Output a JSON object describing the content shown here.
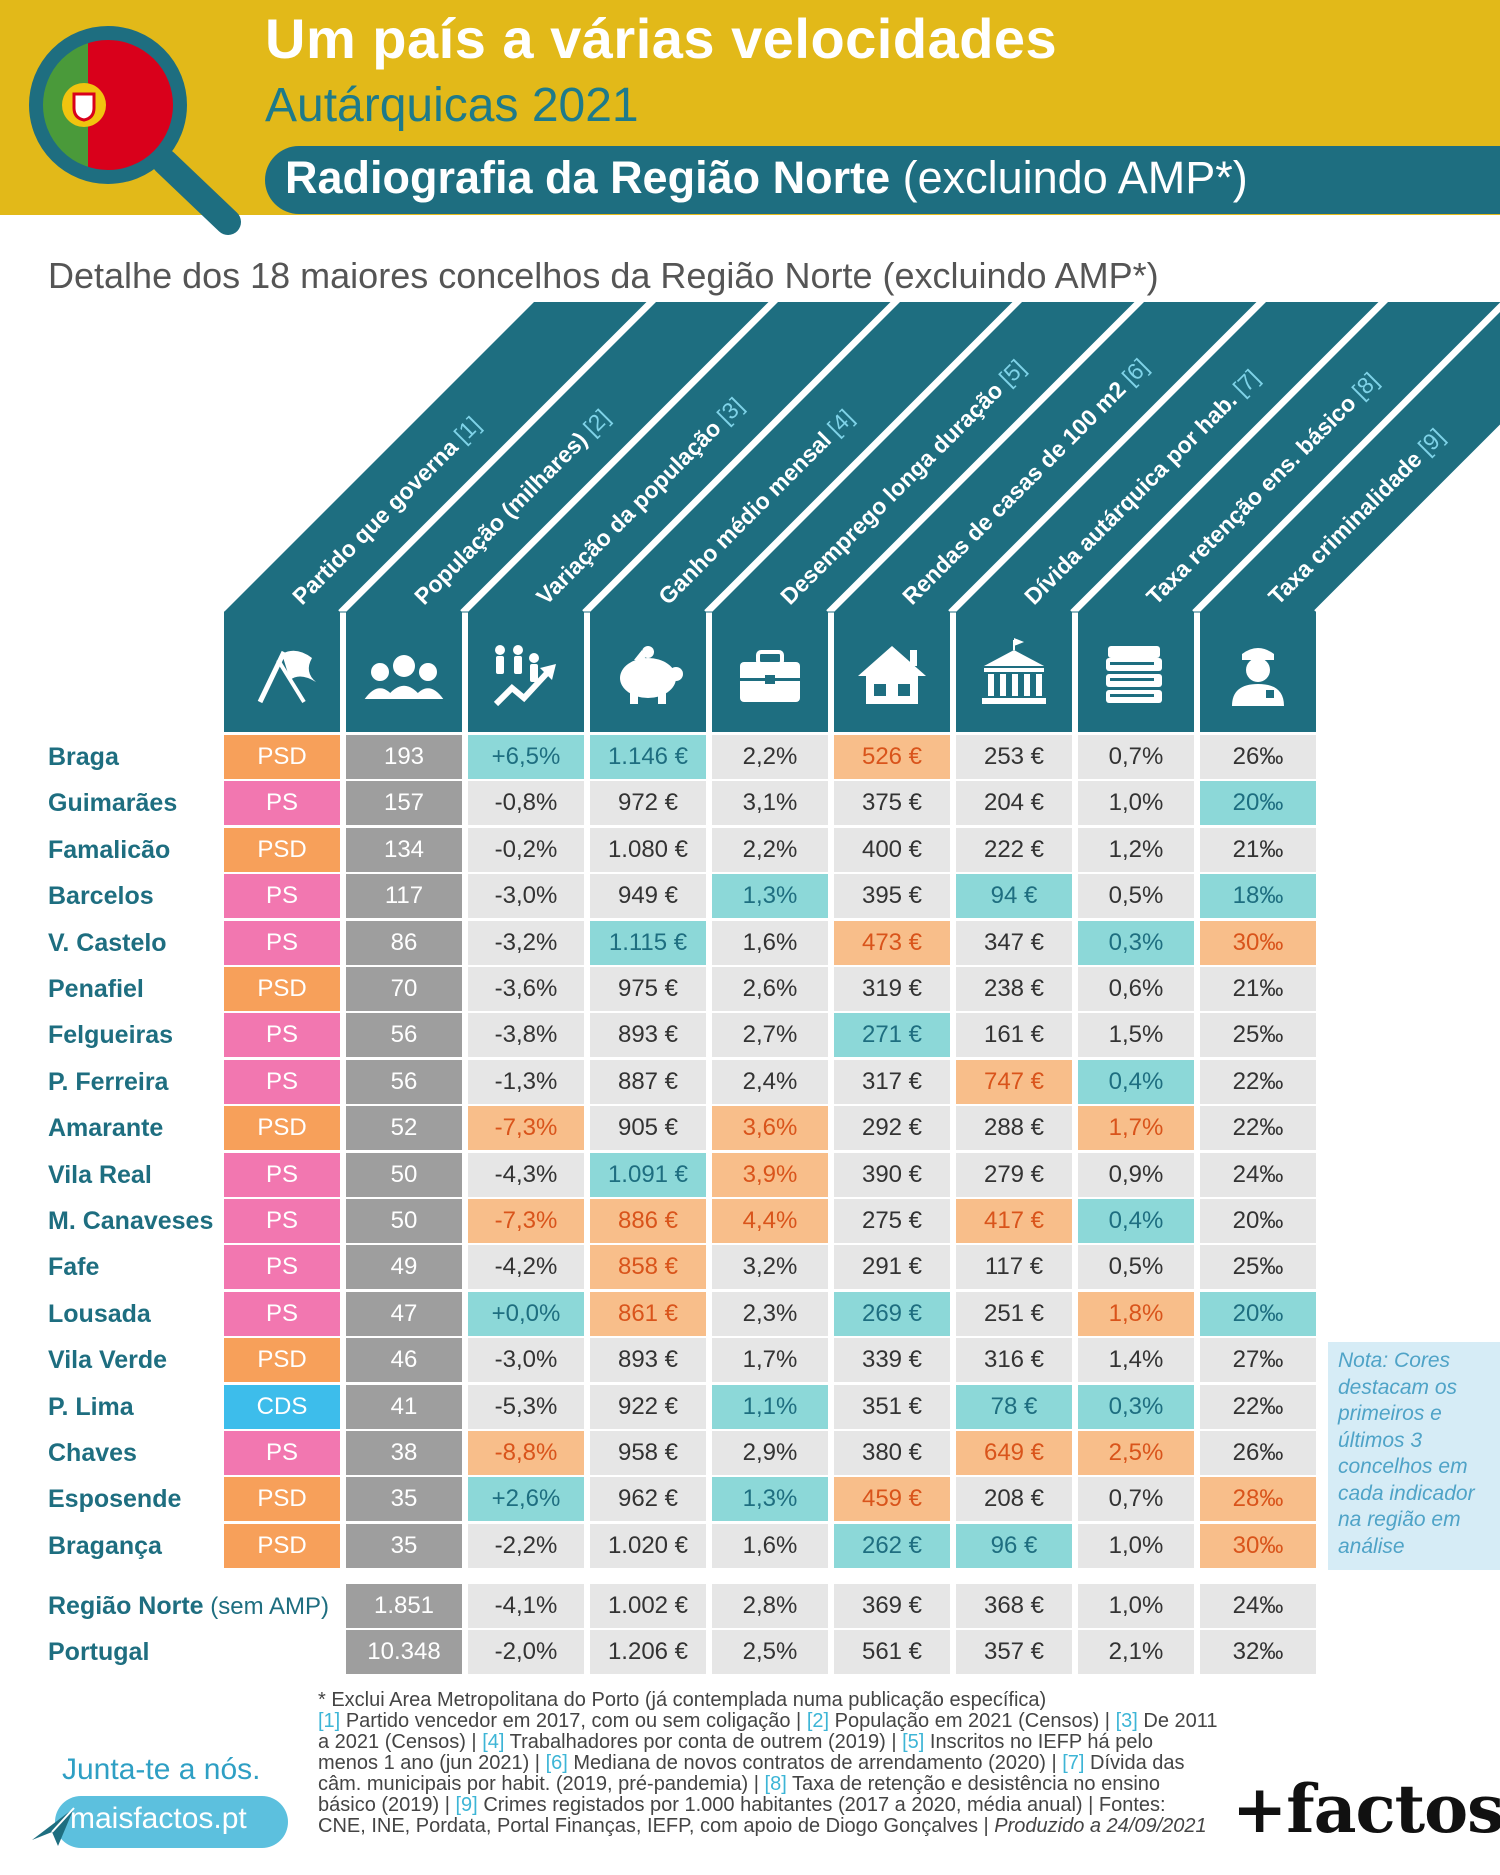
{
  "header": {
    "title": "Um país a várias velocidades",
    "subtitle": "Autárquicas 2021",
    "section_bold": "Radiografia da Região Norte",
    "section_light": " (excluindo AMP*)"
  },
  "detail_title": "Detalhe dos 18 maiores concelhos da Região Norte (excluindo AMP*)",
  "chart_data": {
    "type": "table",
    "title": "Detalhe dos 18 maiores concelhos da Região Norte (excluindo AMP*)",
    "columns": [
      {
        "label": "Partido que governa",
        "ref": "[1]",
        "icon": "flag-icon"
      },
      {
        "label": "População (milhares)",
        "ref": "[2]",
        "icon": "people-icon"
      },
      {
        "label": "Variação da população",
        "ref": "[3]",
        "icon": "family-growth-icon"
      },
      {
        "label": "Ganho médio mensal",
        "ref": "[4]",
        "icon": "piggy-bank-icon"
      },
      {
        "label": "Desemprego longa duração",
        "ref": "[5]",
        "icon": "briefcase-icon"
      },
      {
        "label": "Rendas de casas de 100 m2",
        "ref": "[6]",
        "icon": "house-icon"
      },
      {
        "label": "Dívida autárquica por hab.",
        "ref": "[7]",
        "icon": "town-hall-icon"
      },
      {
        "label": "Taxa retenção ens. básico",
        "ref": "[8]",
        "icon": "books-icon"
      },
      {
        "label": "Taxa criminalidade",
        "ref": "[9]",
        "icon": "police-officer-icon"
      }
    ],
    "rows": [
      {
        "name": "Braga",
        "cells": [
          "PSD",
          "193",
          "+6,5%",
          "1.146 €",
          "2,2%",
          "526 €",
          "253 €",
          "0,7%",
          "26‰"
        ],
        "hl": [
          "psd",
          "pop",
          "best",
          "best",
          "",
          "worst",
          "",
          "",
          ""
        ]
      },
      {
        "name": "Guimarães",
        "cells": [
          "PS",
          "157",
          "-0,8%",
          "972 €",
          "3,1%",
          "375 €",
          "204 €",
          "1,0%",
          "20‰"
        ],
        "hl": [
          "ps",
          "pop",
          "",
          "",
          "",
          "",
          "",
          "",
          "best"
        ]
      },
      {
        "name": "Famalicão",
        "cells": [
          "PSD",
          "134",
          "-0,2%",
          "1.080 €",
          "2,2%",
          "400 €",
          "222 €",
          "1,2%",
          "21‰"
        ],
        "hl": [
          "psd",
          "pop",
          "",
          "",
          "",
          "",
          "",
          "",
          ""
        ]
      },
      {
        "name": "Barcelos",
        "cells": [
          "PS",
          "117",
          "-3,0%",
          "949 €",
          "1,3%",
          "395 €",
          "94 €",
          "0,5%",
          "18‰"
        ],
        "hl": [
          "ps",
          "pop",
          "",
          "",
          "best",
          "",
          "best",
          "",
          "best"
        ]
      },
      {
        "name": "V. Castelo",
        "cells": [
          "PS",
          "86",
          "-3,2%",
          "1.115 €",
          "1,6%",
          "473 €",
          "347 €",
          "0,3%",
          "30‰"
        ],
        "hl": [
          "ps",
          "pop",
          "",
          "best",
          "",
          "worst",
          "",
          "best",
          "worst"
        ]
      },
      {
        "name": "Penafiel",
        "cells": [
          "PSD",
          "70",
          "-3,6%",
          "975 €",
          "2,6%",
          "319 €",
          "238 €",
          "0,6%",
          "21‰"
        ],
        "hl": [
          "psd",
          "pop",
          "",
          "",
          "",
          "",
          "",
          "",
          ""
        ]
      },
      {
        "name": "Felgueiras",
        "cells": [
          "PS",
          "56",
          "-3,8%",
          "893 €",
          "2,7%",
          "271 €",
          "161 €",
          "1,5%",
          "25‰"
        ],
        "hl": [
          "ps",
          "pop",
          "",
          "",
          "",
          "best",
          "",
          "",
          ""
        ]
      },
      {
        "name": "P. Ferreira",
        "cells": [
          "PS",
          "56",
          "-1,3%",
          "887 €",
          "2,4%",
          "317 €",
          "747 €",
          "0,4%",
          "22‰"
        ],
        "hl": [
          "ps",
          "pop",
          "",
          "",
          "",
          "",
          "worst",
          "best",
          ""
        ]
      },
      {
        "name": "Amarante",
        "cells": [
          "PSD",
          "52",
          "-7,3%",
          "905 €",
          "3,6%",
          "292 €",
          "288 €",
          "1,7%",
          "22‰"
        ],
        "hl": [
          "psd",
          "pop",
          "worst",
          "",
          "worst",
          "",
          "",
          "worst",
          ""
        ]
      },
      {
        "name": "Vila Real",
        "cells": [
          "PS",
          "50",
          "-4,3%",
          "1.091 €",
          "3,9%",
          "390 €",
          "279 €",
          "0,9%",
          "24‰"
        ],
        "hl": [
          "ps",
          "pop",
          "",
          "best",
          "worst",
          "",
          "",
          "",
          ""
        ]
      },
      {
        "name": "M. Canaveses",
        "cells": [
          "PS",
          "50",
          "-7,3%",
          "886 €",
          "4,4%",
          "275 €",
          "417 €",
          "0,4%",
          "20‰"
        ],
        "hl": [
          "ps",
          "pop",
          "worst",
          "worst",
          "worst",
          "",
          "worst",
          "best",
          ""
        ]
      },
      {
        "name": "Fafe",
        "cells": [
          "PS",
          "49",
          "-4,2%",
          "858 €",
          "3,2%",
          "291 €",
          "117 €",
          "0,5%",
          "25‰"
        ],
        "hl": [
          "ps",
          "pop",
          "",
          "worst",
          "",
          "",
          "",
          "",
          ""
        ]
      },
      {
        "name": "Lousada",
        "cells": [
          "PS",
          "47",
          "+0,0%",
          "861 €",
          "2,3%",
          "269 €",
          "251 €",
          "1,8%",
          "20‰"
        ],
        "hl": [
          "ps",
          "pop",
          "best",
          "worst",
          "",
          "best",
          "",
          "worst",
          "best"
        ]
      },
      {
        "name": "Vila Verde",
        "cells": [
          "PSD",
          "46",
          "-3,0%",
          "893 €",
          "1,7%",
          "339 €",
          "316 €",
          "1,4%",
          "27‰"
        ],
        "hl": [
          "psd",
          "pop",
          "",
          "",
          "",
          "",
          "",
          "",
          ""
        ]
      },
      {
        "name": "P. Lima",
        "cells": [
          "CDS",
          "41",
          "-5,3%",
          "922 €",
          "1,1%",
          "351 €",
          "78 €",
          "0,3%",
          "22‰"
        ],
        "hl": [
          "cds",
          "pop",
          "",
          "",
          "best",
          "",
          "best",
          "best",
          ""
        ]
      },
      {
        "name": "Chaves",
        "cells": [
          "PS",
          "38",
          "-8,8%",
          "958 €",
          "2,9%",
          "380 €",
          "649 €",
          "2,5%",
          "26‰"
        ],
        "hl": [
          "ps",
          "pop",
          "worst",
          "",
          "",
          "",
          "worst",
          "worst",
          ""
        ]
      },
      {
        "name": "Esposende",
        "cells": [
          "PSD",
          "35",
          "+2,6%",
          "962 €",
          "1,3%",
          "459 €",
          "208 €",
          "0,7%",
          "28‰"
        ],
        "hl": [
          "psd",
          "pop",
          "best",
          "",
          "best",
          "worst",
          "",
          "",
          "worst"
        ]
      },
      {
        "name": "Bragança",
        "cells": [
          "PSD",
          "35",
          "-2,2%",
          "1.020 €",
          "1,6%",
          "262 €",
          "96 €",
          "1,0%",
          "30‰"
        ],
        "hl": [
          "psd",
          "pop",
          "",
          "",
          "",
          "best",
          "best",
          "",
          "worst"
        ]
      }
    ],
    "summary_rows": [
      {
        "name": "Região Norte",
        "suffix": "(sem AMP)",
        "cells": [
          "",
          "1.851",
          "-4,1%",
          "1.002 €",
          "2,8%",
          "369 €",
          "368 €",
          "1,0%",
          "24‰"
        ]
      },
      {
        "name": "Portugal",
        "suffix": "",
        "cells": [
          "",
          "10.348",
          "-2,0%",
          "1.206 €",
          "2,5%",
          "561 €",
          "357 €",
          "2,1%",
          "32‰"
        ]
      }
    ],
    "colors": {
      "header_teal": "#1E6E80",
      "psd": "#F7A05A",
      "ps": "#F277B0",
      "cds": "#3DBDEB",
      "population": "#9E9E9E",
      "best": "#8CD8D8",
      "worst": "#F8BE8A",
      "default": "#E6E6E6"
    }
  },
  "note": "Nota: Cores destacam os primeiros e últimos 3 concelhos em cada indicador na região em análise",
  "footnotes": {
    "line_amp": "* Exclui Area Metropolitana do Porto (já contemplada numa publicação específica)",
    "items": [
      {
        "ref": "[1]",
        "text": "Partido vencedor em 2017, com ou sem coligação |"
      },
      {
        "ref": "[2]",
        "text": "População em 2021 (Censos) |"
      },
      {
        "ref": "[3]",
        "text": "De 2011 a 2021 (Censos) |"
      },
      {
        "ref": "[4]",
        "text": "Trabalhadores por conta de outrem (2019) |"
      },
      {
        "ref": "[5]",
        "text": "Inscritos no IEFP há pelo menos 1 ano (jun 2021) |"
      },
      {
        "ref": "[6]",
        "text": "Mediana de novos contratos de arrendamento (2020) |"
      },
      {
        "ref": "[7]",
        "text": "Dívida das câm. municipais por habit. (2019, pré-pandemia) |"
      },
      {
        "ref": "[8]",
        "text": "Taxa de retenção e desistência no ensino básico (2019) |"
      },
      {
        "ref": "[9]",
        "text": "Crimes registados por 1.000 habitantes (2017 a 2020, média anual) | Fontes: CNE, INE, Pordata, Portal Finanças, IEFP, com apoio de Diogo Gonçalves |"
      }
    ],
    "produced": "Produzido a 24/09/2021"
  },
  "footer": {
    "join": "Junta-te a nós.",
    "site": "maisfactos.pt",
    "brand": "+factos"
  }
}
